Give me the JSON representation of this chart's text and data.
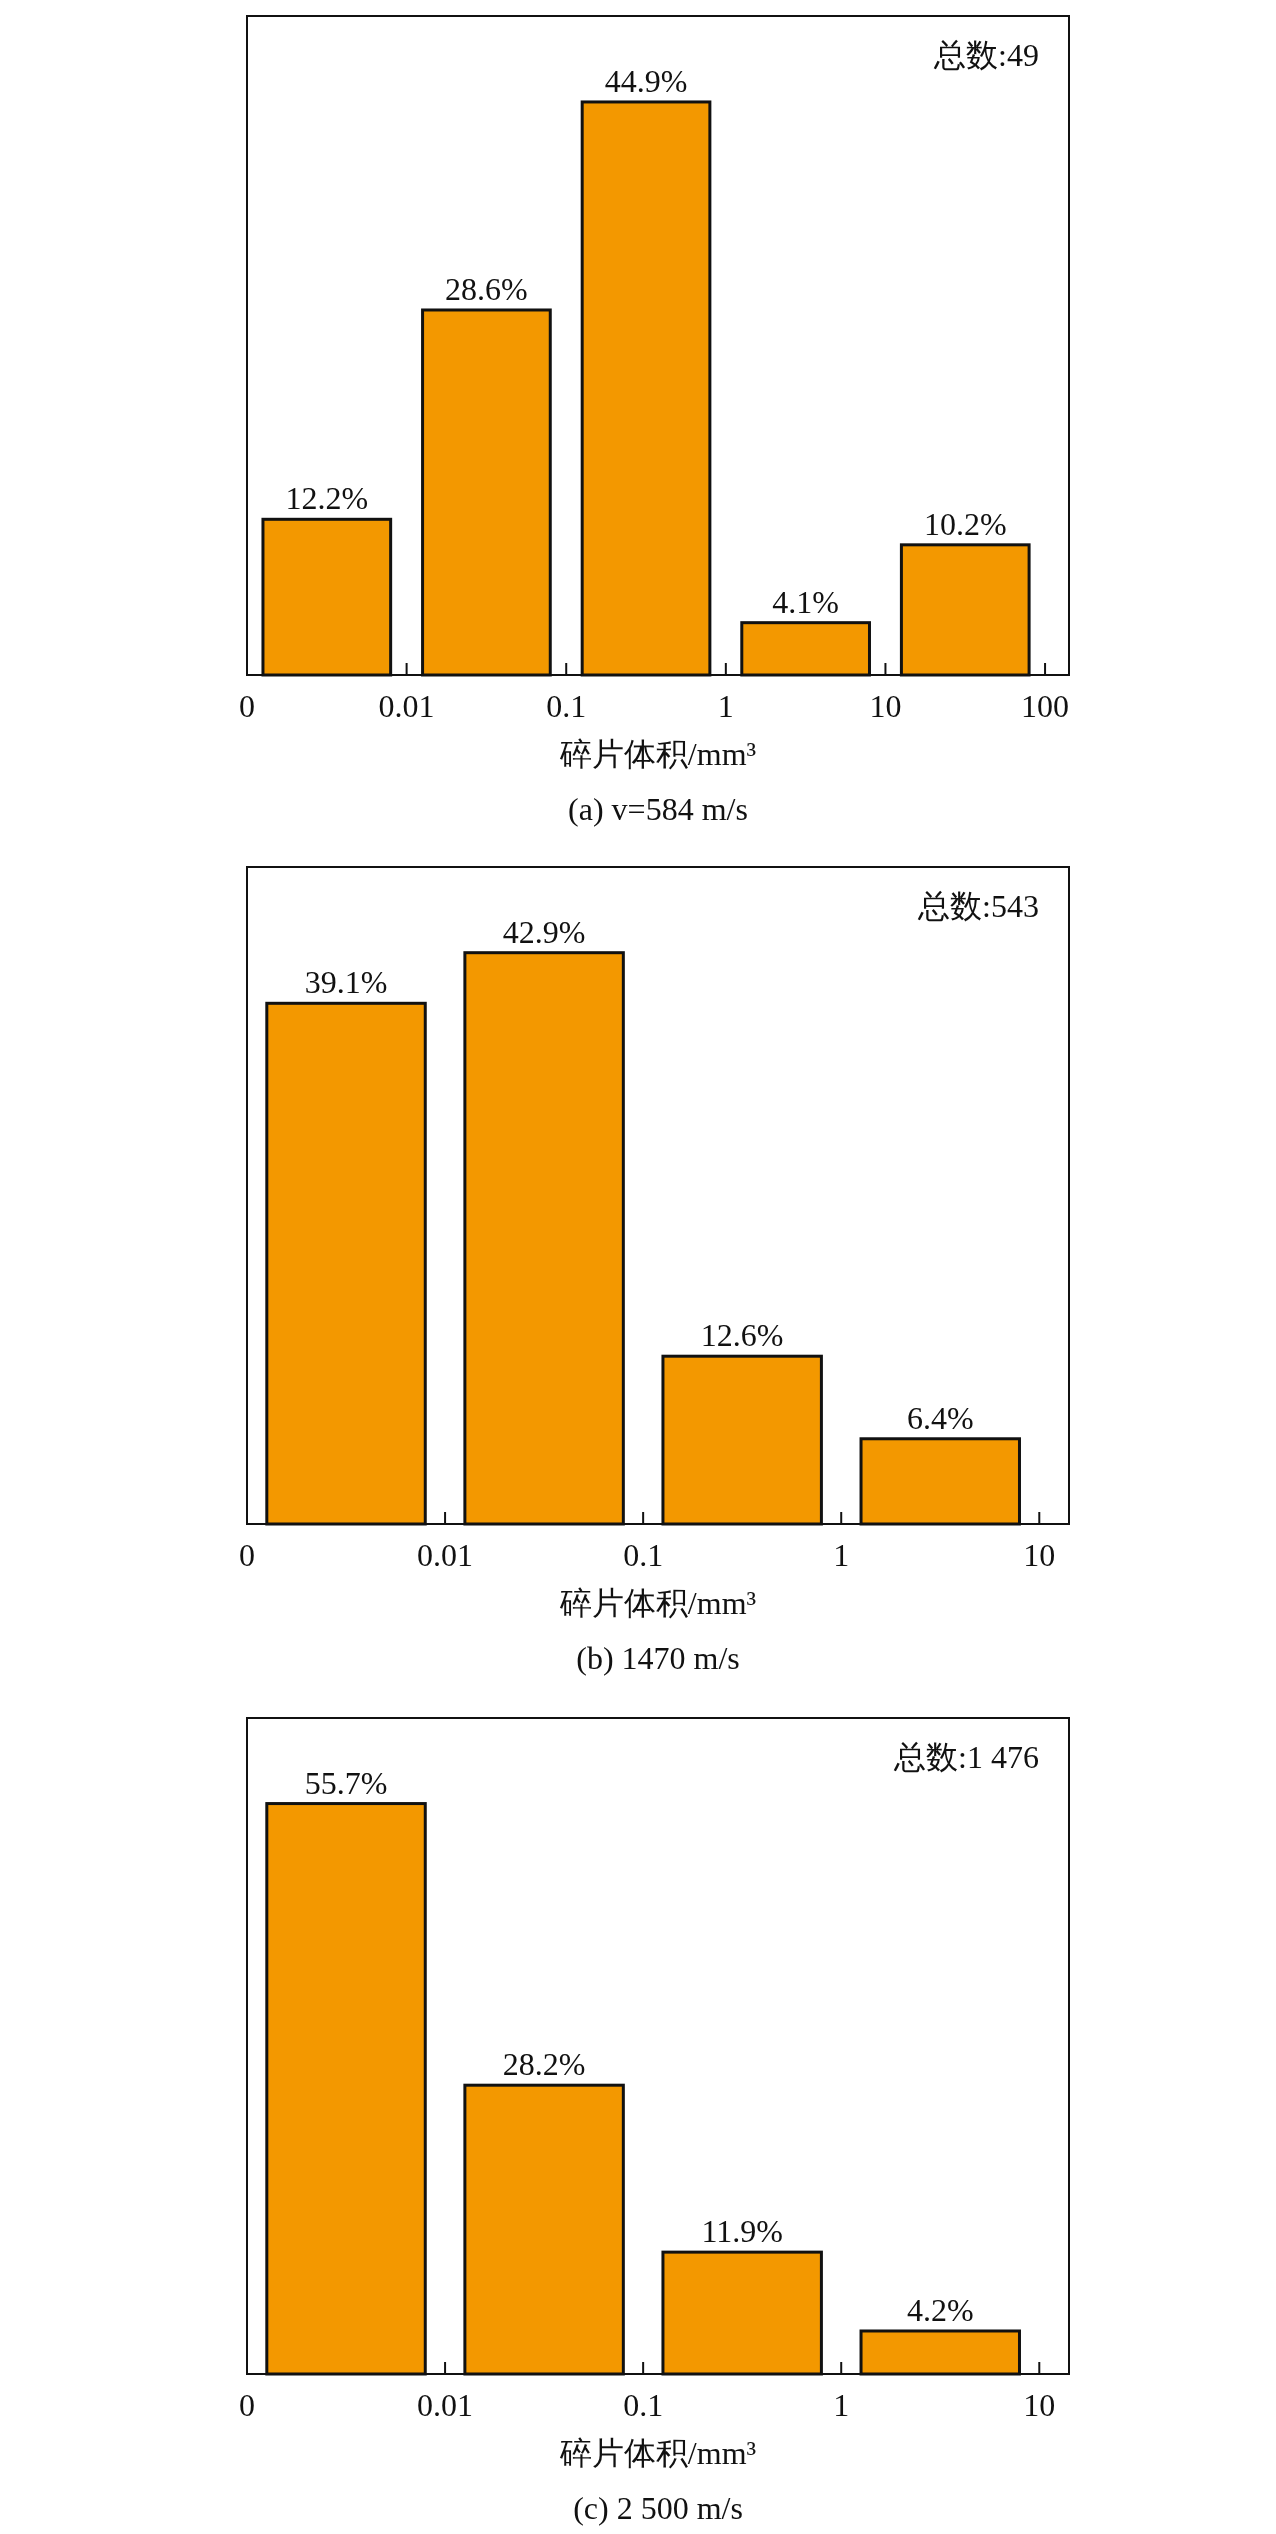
{
  "chart_data": [
    {
      "type": "bar",
      "categories": [
        null,
        null,
        null,
        null,
        null
      ],
      "values": [
        12.2,
        28.6,
        44.9,
        4.1,
        10.2
      ],
      "value_labels": [
        "12.2%",
        "28.6%",
        "44.9%",
        "4.1%",
        "10.2%"
      ],
      "color": "#f39800",
      "xlabel": "碎片体积/mm³",
      "subtitle": "(a) v=584 m/s",
      "annotations": [
        "0",
        "0.01",
        "0.1",
        "1",
        "10",
        "100",
        "总数:49"
      ]
    },
    {
      "type": "bar",
      "categories": [
        null,
        null,
        null,
        null
      ],
      "values": [
        39.1,
        42.9,
        12.6,
        6.4
      ],
      "value_labels": [
        "39.1%",
        "42.9%",
        "12.6%",
        "6.4%"
      ],
      "color": "#f39800",
      "xlabel": "碎片体积/mm³",
      "subtitle": "(b) 1470 m/s",
      "annotations": [
        "0",
        "0.01",
        "0.1",
        "1",
        "10",
        "总数:543"
      ]
    },
    {
      "type": "bar",
      "categories": [
        null,
        null,
        null,
        null
      ],
      "values": [
        55.7,
        28.2,
        11.9,
        4.2
      ],
      "value_labels": [
        "55.7%",
        "28.2%",
        "11.9%",
        "4.2%"
      ],
      "color": "#f39800",
      "xlabel": "碎片体积/mm³",
      "subtitle": "(c) 2 500 m/s",
      "annotations": [
        "0",
        "0.01",
        "0.1",
        "1",
        "10",
        "总数:1 476"
      ]
    }
  ]
}
